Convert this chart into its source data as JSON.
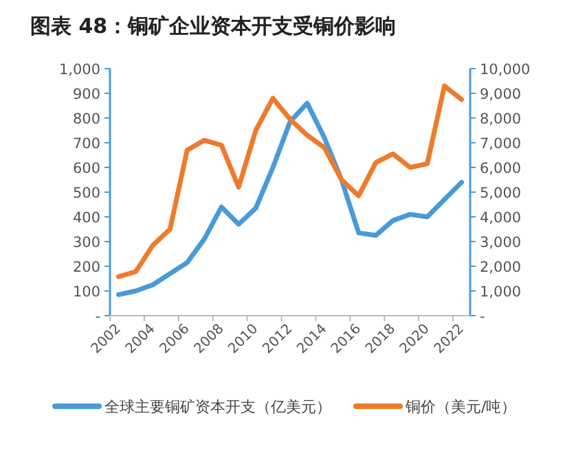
{
  "chart_data": {
    "type": "line",
    "title": "图表 48：铜矿企业资本开支受铜价影响",
    "categories": [
      "2002",
      null,
      "2004",
      null,
      "2006",
      null,
      "2008",
      null,
      "2010",
      null,
      "2012",
      null,
      "2014",
      null,
      "2016",
      null,
      "2018",
      null,
      "2020",
      null,
      "2022"
    ],
    "series": [
      {
        "name": "全球主要铜矿资本开支（亿美元）",
        "color": "#4a9ad8",
        "values": [
          85,
          100,
          125,
          170,
          215,
          310,
          440,
          370,
          435,
          600,
          785,
          860,
          720,
          550,
          335,
          325,
          385,
          410,
          400,
          470,
          540
        ]
      },
      {
        "name": "铜价（美元/吨）",
        "color": "#ee7b2c",
        "axis": "y2",
        "values": [
          1580,
          1780,
          2850,
          3500,
          6700,
          7100,
          6900,
          5200,
          7500,
          8800,
          7950,
          7300,
          6800,
          5500,
          4850,
          6200,
          6550,
          6000,
          6150,
          9300,
          8750
        ]
      }
    ],
    "ylim": [
      0,
      1000
    ],
    "yticks": [
      {
        "value": 0,
        "label": "-"
      },
      100,
      200,
      300,
      400,
      500,
      600,
      700,
      800,
      900,
      {
        "value": 1000,
        "label": "1,000"
      }
    ],
    "y2lim": [
      0,
      10000
    ],
    "y2ticks": [
      {
        "value": 0,
        "label": "-"
      },
      {
        "value": 1000,
        "label": "1,000"
      },
      {
        "value": 2000,
        "label": "2,000"
      },
      {
        "value": 3000,
        "label": "3,000"
      },
      {
        "value": 4000,
        "label": "4,000"
      },
      {
        "value": 5000,
        "label": "5,000"
      },
      {
        "value": 6000,
        "label": "6,000"
      },
      {
        "value": 7000,
        "label": "7,000"
      },
      {
        "value": 8000,
        "label": "8,000"
      },
      {
        "value": 9000,
        "label": "9,000"
      },
      {
        "value": 10000,
        "label": "10,000"
      }
    ],
    "grid": false,
    "legend": "bottom",
    "marker": "none",
    "line_style": "solid"
  }
}
